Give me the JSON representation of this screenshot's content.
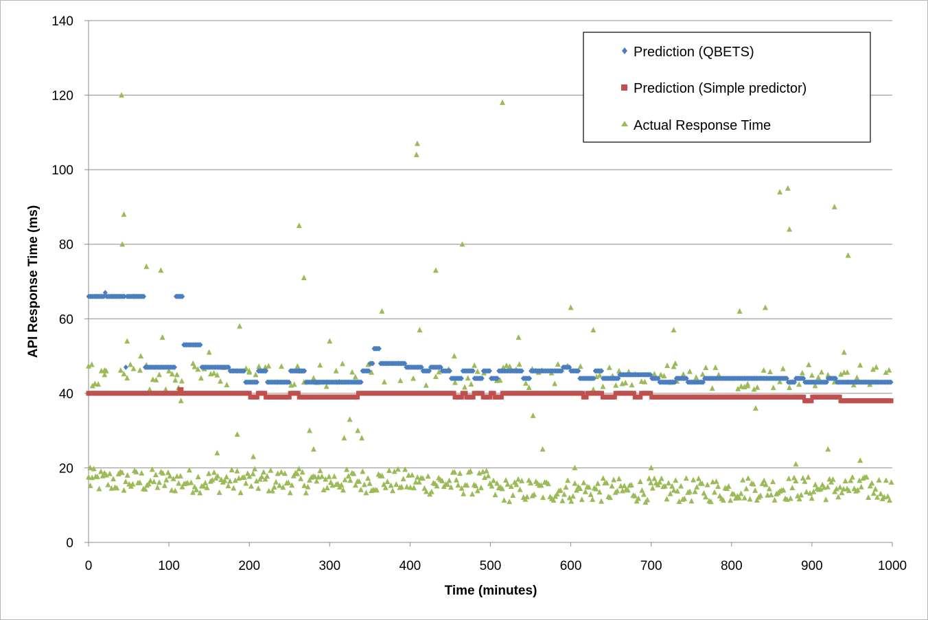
{
  "chart_data": {
    "type": "scatter",
    "title": "",
    "xlabel": "Time (minutes)",
    "ylabel": "API Response Time (ms)",
    "xlim": [
      0,
      1000
    ],
    "ylim": [
      0,
      140
    ],
    "x_ticks": [
      0,
      100,
      200,
      300,
      400,
      500,
      600,
      700,
      800,
      900,
      1000
    ],
    "y_ticks": [
      0,
      20,
      40,
      60,
      80,
      100,
      120,
      140
    ],
    "grid": "horizontal",
    "legend_position": "top-right",
    "series": [
      {
        "name": "Prediction (QBETS)",
        "marker": "diamond",
        "color": "#4a7ebf",
        "segments": [
          [
            0,
            66
          ],
          [
            20,
            67
          ],
          [
            21,
            66
          ],
          [
            45,
            47
          ],
          [
            48,
            66
          ],
          [
            70,
            47
          ],
          [
            108,
            66
          ],
          [
            118,
            53
          ],
          [
            140,
            47
          ],
          [
            175,
            46
          ],
          [
            195,
            43
          ],
          [
            210,
            46
          ],
          [
            222,
            43
          ],
          [
            250,
            46
          ],
          [
            270,
            43
          ],
          [
            310,
            43
          ],
          [
            340,
            46
          ],
          [
            350,
            48
          ],
          [
            355,
            52
          ],
          [
            362,
            48
          ],
          [
            395,
            47
          ],
          [
            415,
            46
          ],
          [
            425,
            47
          ],
          [
            440,
            46
          ],
          [
            450,
            44
          ],
          [
            465,
            46
          ],
          [
            480,
            44
          ],
          [
            490,
            46
          ],
          [
            500,
            44
          ],
          [
            510,
            46
          ],
          [
            540,
            44
          ],
          [
            550,
            46
          ],
          [
            590,
            47
          ],
          [
            600,
            46
          ],
          [
            610,
            44
          ],
          [
            630,
            46
          ],
          [
            640,
            44
          ],
          [
            660,
            45
          ],
          [
            700,
            44
          ],
          [
            710,
            43
          ],
          [
            730,
            44
          ],
          [
            745,
            43
          ],
          [
            765,
            44
          ],
          [
            800,
            44
          ],
          [
            870,
            43
          ],
          [
            880,
            44
          ],
          [
            890,
            43
          ],
          [
            920,
            44
          ],
          [
            930,
            43
          ],
          [
            1000,
            43
          ]
        ]
      },
      {
        "name": "Prediction (Simple predictor)",
        "marker": "square",
        "color": "#c0504d",
        "segments": [
          [
            0,
            40
          ],
          [
            112,
            41
          ],
          [
            116,
            40
          ],
          [
            200,
            39
          ],
          [
            210,
            40
          ],
          [
            220,
            39
          ],
          [
            250,
            40
          ],
          [
            262,
            39
          ],
          [
            335,
            40
          ],
          [
            455,
            39
          ],
          [
            465,
            40
          ],
          [
            470,
            39
          ],
          [
            480,
            40
          ],
          [
            490,
            39
          ],
          [
            500,
            40
          ],
          [
            505,
            39
          ],
          [
            515,
            40
          ],
          [
            600,
            40
          ],
          [
            615,
            39
          ],
          [
            620,
            40
          ],
          [
            640,
            39
          ],
          [
            655,
            40
          ],
          [
            680,
            39
          ],
          [
            688,
            40
          ],
          [
            700,
            39
          ],
          [
            890,
            38
          ],
          [
            900,
            39
          ],
          [
            935,
            38
          ],
          [
            1000,
            38
          ]
        ]
      },
      {
        "name": "Actual Response Time",
        "marker": "triangle",
        "color": "#9bbb59",
        "outliers": [
          [
            2,
            20
          ],
          [
            5,
            42
          ],
          [
            20,
            45
          ],
          [
            22,
            46
          ],
          [
            41,
            120
          ],
          [
            42,
            80
          ],
          [
            44,
            88
          ],
          [
            48,
            54
          ],
          [
            65,
            50
          ],
          [
            72,
            74
          ],
          [
            90,
            73
          ],
          [
            92,
            55
          ],
          [
            100,
            46
          ],
          [
            110,
            45
          ],
          [
            115,
            38
          ],
          [
            130,
            48
          ],
          [
            150,
            51
          ],
          [
            160,
            24
          ],
          [
            185,
            29
          ],
          [
            188,
            58
          ],
          [
            200,
            46
          ],
          [
            205,
            23
          ],
          [
            262,
            85
          ],
          [
            268,
            71
          ],
          [
            275,
            30
          ],
          [
            280,
            25
          ],
          [
            300,
            54
          ],
          [
            318,
            28
          ],
          [
            325,
            33
          ],
          [
            335,
            30
          ],
          [
            340,
            28
          ],
          [
            365,
            62
          ],
          [
            412,
            57
          ],
          [
            408,
            104
          ],
          [
            409,
            107
          ],
          [
            432,
            73
          ],
          [
            455,
            50
          ],
          [
            465,
            80
          ],
          [
            515,
            118
          ],
          [
            535,
            55
          ],
          [
            553,
            34
          ],
          [
            565,
            25
          ],
          [
            600,
            63
          ],
          [
            605,
            20
          ],
          [
            628,
            57
          ],
          [
            700,
            20
          ],
          [
            728,
            57
          ],
          [
            730,
            48
          ],
          [
            810,
            62
          ],
          [
            820,
            42
          ],
          [
            830,
            36
          ],
          [
            842,
            63
          ],
          [
            860,
            94
          ],
          [
            870,
            95
          ],
          [
            872,
            84
          ],
          [
            880,
            21
          ],
          [
            920,
            25
          ],
          [
            928,
            90
          ],
          [
            940,
            51
          ],
          [
            945,
            77
          ],
          [
            960,
            22
          ],
          [
            980,
            47
          ]
        ]
      }
    ]
  }
}
